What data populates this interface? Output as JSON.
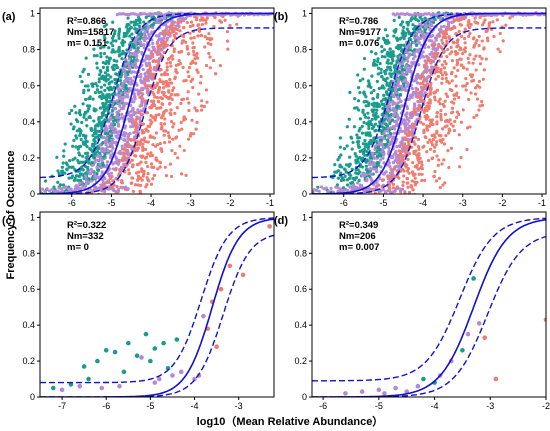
{
  "figure": {
    "ylabel": "Frequency of Occurance",
    "xlabel": "log10（Mean Relative Abundance）"
  },
  "colors": {
    "teal": "#1a9c8c",
    "purple": "#b48ad6",
    "salmon": "#f07b6e",
    "fit": "#1010d0"
  },
  "chart_data": [
    {
      "type": "scatter",
      "panel_label": "(a)",
      "stats": [
        "R²=0.866",
        "Nm=15817",
        "m= 0.151"
      ],
      "xlim": [
        -6.8,
        -0.9
      ],
      "ylim": [
        0,
        1.03
      ],
      "xticks": [
        -6,
        -5,
        -4,
        -3,
        -2,
        -1
      ],
      "yticks": [
        0,
        0.2,
        0.4,
        0.6,
        0.8,
        1
      ],
      "fit": {
        "center": -4.55,
        "scale": 0.3,
        "ci_lower_floor": 0.0,
        "ci_upper_floor": 0.09,
        "ci_upper_cap": 1.0,
        "ci_lower_cap": 0.92,
        "shift": 0.4
      },
      "density": "high"
    },
    {
      "type": "scatter",
      "panel_label": "(b)",
      "stats": [
        "R²=0.786",
        "Nm=9177",
        "m= 0.076"
      ],
      "xlim": [
        -6.8,
        -0.9
      ],
      "ylim": [
        0,
        1.03
      ],
      "xticks": [
        -6,
        -5,
        -4,
        -3,
        -2,
        -1
      ],
      "yticks": [
        0,
        0.2,
        0.4,
        0.6,
        0.8,
        1
      ],
      "fit": {
        "center": -4.45,
        "scale": 0.3,
        "ci_lower_floor": 0.0,
        "ci_upper_floor": 0.09,
        "ci_upper_cap": 1.0,
        "ci_lower_cap": 0.92,
        "shift": 0.4
      },
      "density": "high"
    },
    {
      "type": "scatter",
      "panel_label": "(c)",
      "stats": [
        "R²=0.322",
        "Nm=332",
        "m= 0"
      ],
      "xlim": [
        -7.5,
        -2.2
      ],
      "ylim": [
        0,
        1.03
      ],
      "xticks": [
        -7,
        -6,
        -5,
        -4,
        -3
      ],
      "yticks": [
        0,
        0.2,
        0.4,
        0.6,
        0.8,
        1
      ],
      "fit": {
        "center": -3.6,
        "scale": 0.3,
        "ci_lower_floor": 0.0,
        "ci_upper_floor": 0.08,
        "ci_upper_cap": 1.0,
        "ci_lower_cap": 0.92,
        "shift": 0.25
      },
      "points": [
        {
          "x": -7.2,
          "y": 0.05,
          "c": "teal"
        },
        {
          "x": -7.0,
          "y": 0.04,
          "c": "purple"
        },
        {
          "x": -6.8,
          "y": 0.07,
          "c": "teal"
        },
        {
          "x": -6.5,
          "y": 0.17,
          "c": "teal"
        },
        {
          "x": -6.4,
          "y": 0.1,
          "c": "teal"
        },
        {
          "x": -6.2,
          "y": 0.2,
          "c": "teal"
        },
        {
          "x": -6.0,
          "y": 0.26,
          "c": "teal"
        },
        {
          "x": -5.8,
          "y": 0.25,
          "c": "teal"
        },
        {
          "x": -5.6,
          "y": 0.14,
          "c": "teal"
        },
        {
          "x": -5.5,
          "y": 0.3,
          "c": "teal"
        },
        {
          "x": -5.3,
          "y": 0.23,
          "c": "teal"
        },
        {
          "x": -5.1,
          "y": 0.35,
          "c": "teal"
        },
        {
          "x": -5.0,
          "y": 0.2,
          "c": "teal"
        },
        {
          "x": -4.9,
          "y": 0.27,
          "c": "teal"
        },
        {
          "x": -4.7,
          "y": 0.3,
          "c": "teal"
        },
        {
          "x": -4.6,
          "y": 0.16,
          "c": "teal"
        },
        {
          "x": -4.4,
          "y": 0.32,
          "c": "teal"
        },
        {
          "x": -5.2,
          "y": 0.22,
          "c": "purple"
        },
        {
          "x": -4.9,
          "y": 0.08,
          "c": "purple"
        },
        {
          "x": -4.8,
          "y": 0.1,
          "c": "purple"
        },
        {
          "x": -4.5,
          "y": 0.12,
          "c": "purple"
        },
        {
          "x": -4.3,
          "y": 0.14,
          "c": "purple"
        },
        {
          "x": -4.0,
          "y": 0.1,
          "c": "purple"
        },
        {
          "x": -3.9,
          "y": 0.12,
          "c": "purple"
        },
        {
          "x": -3.8,
          "y": 0.45,
          "c": "purple"
        },
        {
          "x": -3.6,
          "y": 0.53,
          "c": "salmon"
        },
        {
          "x": -3.7,
          "y": 0.38,
          "c": "salmon"
        },
        {
          "x": -3.5,
          "y": 0.28,
          "c": "salmon"
        },
        {
          "x": -3.4,
          "y": 0.6,
          "c": "salmon"
        },
        {
          "x": -3.2,
          "y": 0.73,
          "c": "salmon"
        },
        {
          "x": -2.9,
          "y": 0.68,
          "c": "salmon"
        },
        {
          "x": -2.3,
          "y": 0.95,
          "c": "salmon"
        },
        {
          "x": -6.6,
          "y": 0.06,
          "c": "purple"
        },
        {
          "x": -6.1,
          "y": 0.05,
          "c": "purple"
        },
        {
          "x": -5.7,
          "y": 0.06,
          "c": "purple"
        }
      ]
    },
    {
      "type": "scatter",
      "panel_label": "(d)",
      "stats": [
        "R²=0.349",
        "Nm=206",
        "m= 0.007"
      ],
      "xlim": [
        -6.2,
        -2.0
      ],
      "ylim": [
        0,
        1.03
      ],
      "xticks": [
        -6,
        -5,
        -4,
        -3,
        -2
      ],
      "yticks": [
        0,
        0.2,
        0.4,
        0.6,
        0.8,
        1
      ],
      "fit": {
        "center": -3.3,
        "scale": 0.3,
        "ci_lower_floor": 0.0,
        "ci_upper_floor": 0.09,
        "ci_upper_cap": 1.0,
        "ci_lower_cap": 0.92,
        "shift": 0.25
      },
      "points": [
        {
          "x": -5.6,
          "y": 0.02,
          "c": "purple"
        },
        {
          "x": -5.3,
          "y": 0.03,
          "c": "purple"
        },
        {
          "x": -5.0,
          "y": 0.04,
          "c": "purple"
        },
        {
          "x": -4.9,
          "y": 0.02,
          "c": "purple"
        },
        {
          "x": -4.7,
          "y": 0.05,
          "c": "purple"
        },
        {
          "x": -4.5,
          "y": 0.03,
          "c": "purple"
        },
        {
          "x": -4.3,
          "y": 0.06,
          "c": "purple"
        },
        {
          "x": -4.2,
          "y": 0.1,
          "c": "teal"
        },
        {
          "x": -4.0,
          "y": 0.08,
          "c": "teal"
        },
        {
          "x": -3.9,
          "y": 0.12,
          "c": "purple"
        },
        {
          "x": -3.7,
          "y": 0.2,
          "c": "purple"
        },
        {
          "x": -3.5,
          "y": 0.26,
          "c": "teal"
        },
        {
          "x": -3.4,
          "y": 0.35,
          "c": "purple"
        },
        {
          "x": -3.3,
          "y": 0.66,
          "c": "teal"
        },
        {
          "x": -3.2,
          "y": 0.41,
          "c": "purple"
        },
        {
          "x": -3.1,
          "y": 0.33,
          "c": "salmon"
        },
        {
          "x": -2.9,
          "y": 0.1,
          "c": "salmon"
        },
        {
          "x": -2.0,
          "y": 0.43,
          "c": "salmon"
        }
      ]
    }
  ]
}
